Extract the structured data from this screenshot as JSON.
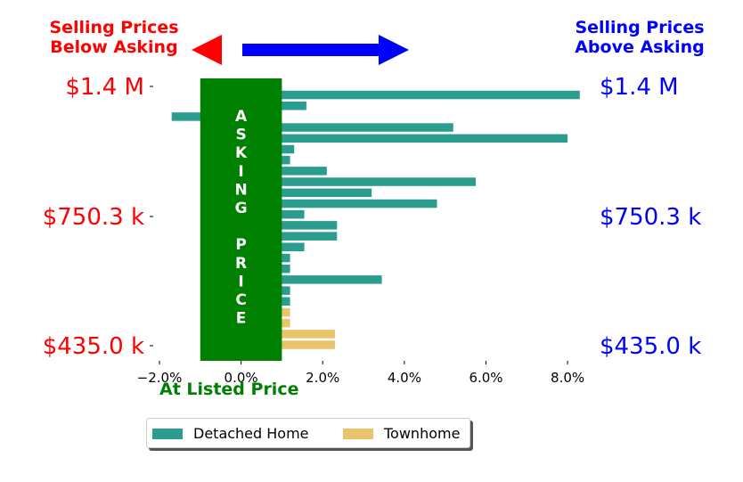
{
  "header": {
    "left_label": "Selling Prices Below Asking",
    "right_label": "Selling Prices Above Asking"
  },
  "x_caption": "At Listed Price",
  "band_label": "ASKING PRICE",
  "colors": {
    "below": "#ff0000",
    "above": "#0000ff",
    "band": "#008000",
    "detached": "#2a9d8f",
    "townhome": "#e9c46a"
  },
  "chart_data": {
    "type": "bar",
    "orientation": "horizontal",
    "xlabel": "At Listed Price",
    "xlim": [
      -2.0,
      8.5
    ],
    "xticks": [
      "−2.0%",
      "0.0%",
      "2.0%",
      "4.0%",
      "6.0%",
      "8.0%"
    ],
    "xtick_values": [
      -2,
      0,
      2,
      4,
      6,
      8
    ],
    "yticks_left": [
      "$1.4 M",
      "$750.3 k",
      "$435.0 k"
    ],
    "yticks_right": [
      "$1.4 M",
      "$750.3 k",
      "$435.0 k"
    ],
    "legend": [
      "Detached Home",
      "Townhome"
    ],
    "legend_position": "bottom-center",
    "asking_band": [
      -1.0,
      1.0
    ],
    "series": [
      {
        "name": "Detached Home",
        "values": [
          8.3,
          1.6,
          -1.7,
          5.2,
          8.0,
          1.3,
          1.2,
          2.1,
          5.75,
          3.2,
          4.8,
          1.55,
          2.35,
          2.35,
          1.55,
          1.2,
          1.2,
          3.45,
          1.2,
          1.2
        ]
      },
      {
        "name": "Townhome",
        "values": [
          1.2,
          1.2,
          2.3,
          2.3
        ]
      }
    ]
  }
}
